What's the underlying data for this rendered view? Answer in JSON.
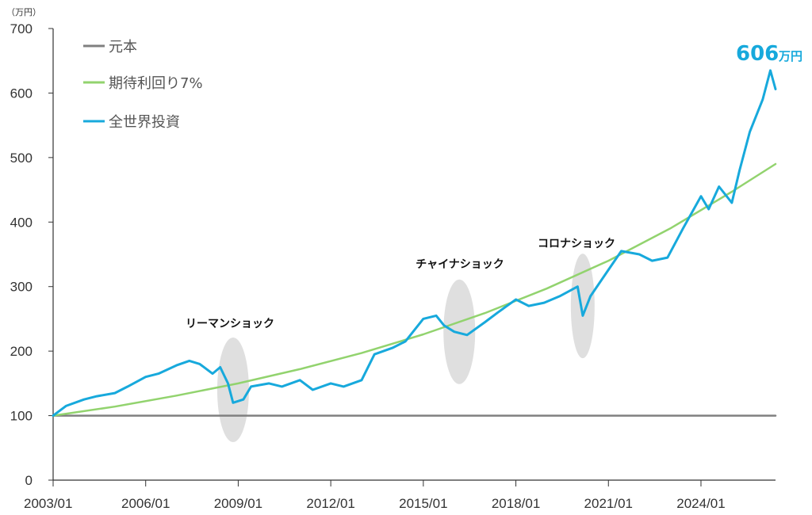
{
  "chart_data": {
    "type": "line",
    "y_unit": "（万円）",
    "ylim": [
      0,
      700
    ],
    "y_ticks": [
      "0",
      "100",
      "200",
      "300",
      "400",
      "500",
      "600",
      "700"
    ],
    "x_ticks": [
      "2003/01",
      "2006/01",
      "2009/01",
      "2012/01",
      "2015/01",
      "2018/01",
      "2021/01",
      "2024/01"
    ],
    "xlim": [
      "2003/01",
      "2026/06"
    ],
    "grid": false,
    "legend_position": "top-left",
    "series": [
      {
        "name": "元本",
        "color": "#808080",
        "x": [
          "2003/01",
          "2026/06"
        ],
        "values": [
          100,
          100
        ]
      },
      {
        "name": "期待利回り7%",
        "color": "#92d36e",
        "x": [
          "2003/01",
          "2005/01",
          "2007/01",
          "2009/01",
          "2011/01",
          "2013/01",
          "2015/01",
          "2017/01",
          "2019/01",
          "2021/01",
          "2023/01",
          "2025/01",
          "2026/06"
        ],
        "values": [
          100,
          114,
          131,
          150,
          172,
          197,
          226,
          259,
          297,
          340,
          390,
          447,
          490
        ]
      },
      {
        "name": "全世界投資",
        "color": "#17a9dc",
        "x": [
          "2003/01",
          "2003/06",
          "2004/01",
          "2004/06",
          "2005/01",
          "2005/06",
          "2006/01",
          "2006/06",
          "2007/01",
          "2007/06",
          "2007/10",
          "2008/03",
          "2008/06",
          "2008/09",
          "2008/11",
          "2009/03",
          "2009/06",
          "2010/01",
          "2010/06",
          "2011/01",
          "2011/06",
          "2012/01",
          "2012/06",
          "2013/01",
          "2013/06",
          "2014/01",
          "2014/06",
          "2015/01",
          "2015/06",
          "2015/09",
          "2016/01",
          "2016/06",
          "2017/01",
          "2017/06",
          "2018/01",
          "2018/06",
          "2018/12",
          "2019/06",
          "2020/01",
          "2020/03",
          "2020/06",
          "2020/12",
          "2021/06",
          "2022/01",
          "2022/06",
          "2022/12",
          "2023/06",
          "2024/01",
          "2024/04",
          "2024/08",
          "2025/01",
          "2025/04",
          "2025/08",
          "2026/01",
          "2026/04",
          "2026/06"
        ],
        "values": [
          100,
          115,
          125,
          130,
          135,
          145,
          160,
          165,
          178,
          185,
          180,
          165,
          175,
          150,
          120,
          125,
          145,
          150,
          145,
          155,
          140,
          150,
          145,
          155,
          195,
          205,
          215,
          250,
          255,
          240,
          230,
          225,
          245,
          260,
          280,
          270,
          275,
          285,
          300,
          255,
          285,
          320,
          355,
          350,
          340,
          345,
          390,
          440,
          420,
          455,
          430,
          480,
          540,
          590,
          635,
          606
        ]
      }
    ],
    "annotations": [
      {
        "label": "リーマンショック",
        "x": "2008/11",
        "y": 140
      },
      {
        "label": "チャイナショック",
        "x": "2016/03",
        "y": 230
      },
      {
        "label": "コロナショック",
        "x": "2020/03",
        "y": 270
      }
    ],
    "final_value": {
      "number": "606",
      "unit": "万円",
      "color": "#17a9dc"
    }
  }
}
